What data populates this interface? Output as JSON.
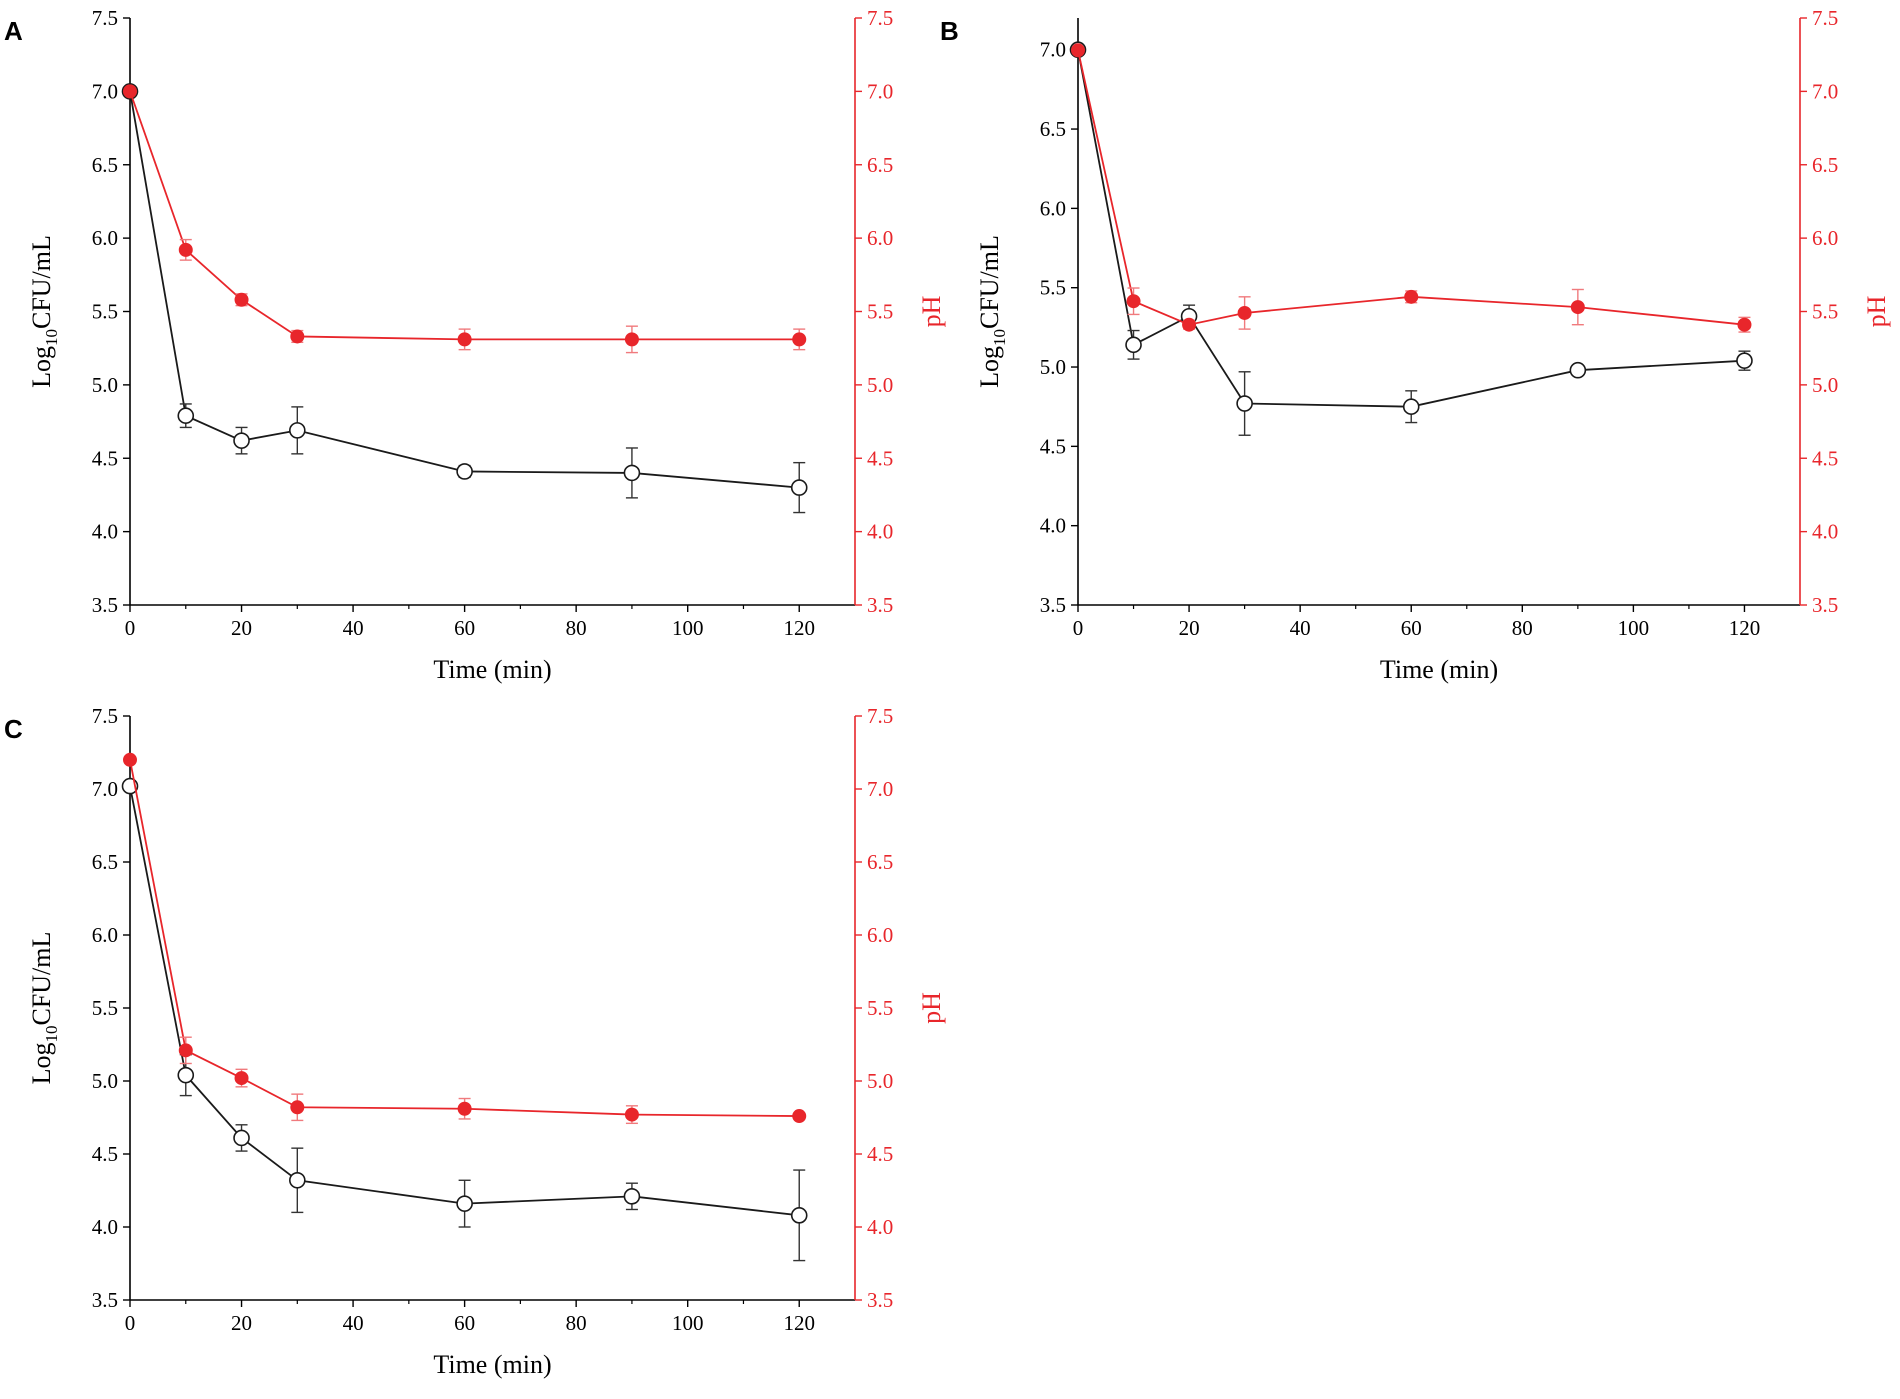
{
  "colors": {
    "cfu": "#1a1a1a",
    "ph": "#e8262b"
  },
  "chart_data": [
    {
      "type": "line",
      "panel": "A",
      "xlabel": "Time (min)",
      "ylabel_main": "Log",
      "ylabel_sub": "10",
      "ylabel_rest": "CFU/mL",
      "y2label": "pH",
      "xlim": [
        0,
        130
      ],
      "ylim": [
        3.5,
        7.5
      ],
      "y2lim": [
        3.5,
        7.5
      ],
      "xticks": [
        0,
        20,
        40,
        60,
        80,
        100,
        120
      ],
      "yticks": [
        3.5,
        4.0,
        4.5,
        5.0,
        5.5,
        6.0,
        6.5,
        7.0,
        7.5
      ],
      "x": [
        0,
        10,
        20,
        30,
        60,
        90,
        120
      ],
      "series": [
        {
          "name": "Log10 CFU/mL",
          "axis": "left",
          "marker": "open-circle",
          "values": [
            7.0,
            4.79,
            4.62,
            4.69,
            4.41,
            4.4,
            4.3
          ],
          "errors": [
            0.02,
            0.08,
            0.09,
            0.16,
            0.04,
            0.17,
            0.17
          ]
        },
        {
          "name": "pH",
          "axis": "right",
          "marker": "filled-circle",
          "values": [
            7.0,
            5.92,
            5.58,
            5.33,
            5.31,
            5.31,
            5.31
          ],
          "errors": [
            0.02,
            0.07,
            0.04,
            0.04,
            0.07,
            0.09,
            0.07
          ]
        }
      ]
    },
    {
      "type": "line",
      "panel": "B",
      "xlabel": "Time (min)",
      "ylabel_main": "Log",
      "ylabel_sub": "10",
      "ylabel_rest": "CFU/mL",
      "y2label": "pH",
      "xlim": [
        0,
        130
      ],
      "ylim": [
        3.5,
        7.2
      ],
      "y2lim": [
        3.5,
        7.5
      ],
      "xticks": [
        0,
        20,
        40,
        60,
        80,
        100,
        120
      ],
      "yticks": [
        3.5,
        4.0,
        4.5,
        5.0,
        5.5,
        6.0,
        6.5,
        7.0
      ],
      "y2ticks": [
        3.5,
        4.0,
        4.5,
        5.0,
        5.5,
        6.0,
        6.5,
        7.0,
        7.5
      ],
      "x": [
        0,
        10,
        20,
        30,
        60,
        90,
        120
      ],
      "series": [
        {
          "name": "Log10 CFU/mL",
          "axis": "left",
          "marker": "open-circle",
          "values": [
            7.0,
            5.14,
            5.32,
            4.77,
            4.75,
            4.98,
            5.04
          ],
          "errors": [
            0.02,
            0.09,
            0.07,
            0.2,
            0.1,
            0.03,
            0.06
          ]
        },
        {
          "name": "pH",
          "axis": "right",
          "marker": "filled-circle",
          "values": [
            7.28,
            5.57,
            5.41,
            5.49,
            5.6,
            5.53,
            5.41
          ],
          "errors": [
            0.02,
            0.09,
            0.03,
            0.11,
            0.04,
            0.12,
            0.05
          ]
        }
      ]
    },
    {
      "type": "line",
      "panel": "C",
      "xlabel": "Time (min)",
      "ylabel_main": "Log",
      "ylabel_sub": "10",
      "ylabel_rest": "CFU/mL",
      "y2label": "pH",
      "xlim": [
        0,
        130
      ],
      "ylim": [
        3.5,
        7.5
      ],
      "y2lim": [
        3.5,
        7.5
      ],
      "xticks": [
        0,
        20,
        40,
        60,
        80,
        100,
        120
      ],
      "yticks": [
        3.5,
        4.0,
        4.5,
        5.0,
        5.5,
        6.0,
        6.5,
        7.0,
        7.5
      ],
      "x": [
        0,
        10,
        20,
        30,
        60,
        90,
        120
      ],
      "series": [
        {
          "name": "Log10 CFU/mL",
          "axis": "left",
          "marker": "open-circle",
          "values": [
            7.02,
            5.04,
            4.61,
            4.32,
            4.16,
            4.21,
            4.08
          ],
          "errors": [
            0.02,
            0.14,
            0.09,
            0.22,
            0.16,
            0.09,
            0.31
          ]
        },
        {
          "name": "pH",
          "axis": "right",
          "marker": "filled-circle",
          "values": [
            7.2,
            5.21,
            5.02,
            4.82,
            4.81,
            4.77,
            4.76
          ],
          "errors": [
            0.02,
            0.09,
            0.06,
            0.09,
            0.07,
            0.06,
            0.02
          ]
        }
      ]
    }
  ]
}
